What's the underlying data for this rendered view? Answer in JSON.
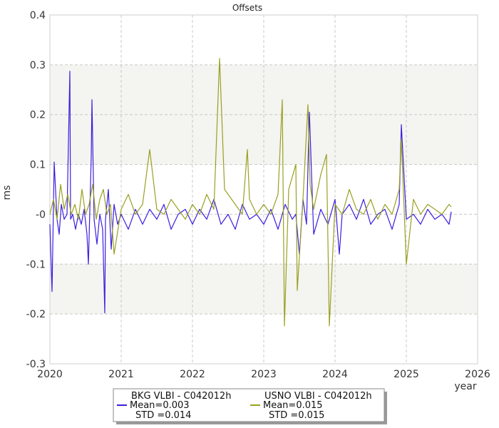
{
  "chart_data": {
    "type": "line",
    "title": "Offsets",
    "xlabel": "year",
    "ylabel": "ms",
    "xlim": [
      2020,
      2026
    ],
    "ylim": [
      -0.3,
      0.4
    ],
    "x_ticks": [
      "2020",
      "2021",
      "2022",
      "2023",
      "2024",
      "2025",
      "2026"
    ],
    "y_ticks": [
      "0.4",
      "0.3",
      "0.2",
      "0.1",
      "-0",
      "-0.1",
      "-0.2",
      "-0.3"
    ],
    "grid": true,
    "shaded_bands": [
      [
        0.1,
        0.3
      ],
      [
        -0.2,
        -0.1
      ]
    ],
    "legend_position": "bottom",
    "series": [
      {
        "name": "BKG VLBI - C042012h",
        "color": "#3b1fe0",
        "mean_label": "Mean=0.003",
        "std_label": "STD =0.014",
        "x": [
          2020.0,
          2020.03,
          2020.06,
          2020.1,
          2020.13,
          2020.16,
          2020.2,
          2020.24,
          2020.28,
          2020.29,
          2020.32,
          2020.36,
          2020.4,
          2020.44,
          2020.48,
          2020.52,
          2020.54,
          2020.58,
          2020.59,
          2020.62,
          2020.66,
          2020.7,
          2020.74,
          2020.77,
          2020.78,
          2020.82,
          2020.86,
          2020.9,
          2020.95,
          2021.0,
          2021.1,
          2021.2,
          2021.3,
          2021.4,
          2021.5,
          2021.6,
          2021.7,
          2021.8,
          2021.9,
          2022.0,
          2022.1,
          2022.2,
          2022.3,
          2022.4,
          2022.5,
          2022.6,
          2022.7,
          2022.8,
          2022.9,
          2023.0,
          2023.1,
          2023.2,
          2023.3,
          2023.4,
          2023.45,
          2023.5,
          2023.55,
          2023.6,
          2023.64,
          2023.7,
          2023.8,
          2023.9,
          2024.0,
          2024.06,
          2024.1,
          2024.2,
          2024.3,
          2024.4,
          2024.5,
          2024.6,
          2024.7,
          2024.8,
          2024.9,
          2024.93,
          2025.0,
          2025.1,
          2025.2,
          2025.3,
          2025.4,
          2025.5,
          2025.6,
          2025.63
        ],
        "y": [
          -0.02,
          -0.155,
          0.105,
          -0.01,
          -0.04,
          0.02,
          -0.01,
          0.0,
          0.287,
          -0.01,
          0.0,
          -0.03,
          0.0,
          -0.02,
          0.01,
          -0.04,
          -0.1,
          0.115,
          0.23,
          -0.01,
          -0.06,
          0.0,
          -0.03,
          -0.198,
          -0.01,
          0.05,
          -0.07,
          0.02,
          -0.02,
          0.0,
          -0.03,
          0.01,
          -0.02,
          0.01,
          -0.01,
          0.02,
          -0.03,
          0.0,
          0.01,
          -0.02,
          0.01,
          -0.01,
          0.03,
          -0.02,
          0.0,
          -0.03,
          0.02,
          -0.01,
          0.0,
          -0.02,
          0.01,
          -0.03,
          0.02,
          -0.01,
          0.0,
          -0.08,
          0.03,
          -0.02,
          0.205,
          -0.04,
          0.01,
          -0.02,
          0.03,
          -0.08,
          0.0,
          0.02,
          -0.01,
          0.03,
          -0.02,
          0.0,
          0.01,
          -0.03,
          0.02,
          0.18,
          -0.01,
          0.0,
          -0.02,
          0.01,
          -0.01,
          0.0,
          -0.02,
          0.005
        ]
      },
      {
        "name": "USNO VLBI - C042012h",
        "color": "#9aa020",
        "mean_label": "Mean=0.015",
        "std_label": "STD =0.015",
        "x": [
          2020.0,
          2020.05,
          2020.1,
          2020.15,
          2020.2,
          2020.25,
          2020.3,
          2020.35,
          2020.4,
          2020.45,
          2020.5,
          2020.55,
          2020.6,
          2020.65,
          2020.7,
          2020.75,
          2020.8,
          2020.85,
          2020.9,
          2021.0,
          2021.1,
          2021.2,
          2021.3,
          2021.4,
          2021.5,
          2021.6,
          2021.7,
          2021.8,
          2021.9,
          2022.0,
          2022.1,
          2022.2,
          2022.3,
          2022.38,
          2022.45,
          2022.6,
          2022.7,
          2022.77,
          2022.8,
          2022.9,
          2023.0,
          2023.1,
          2023.2,
          2023.26,
          2023.29,
          2023.35,
          2023.45,
          2023.47,
          2023.55,
          2023.62,
          2023.65,
          2023.7,
          2023.8,
          2023.88,
          2023.92,
          2024.0,
          2024.1,
          2024.2,
          2024.3,
          2024.4,
          2024.5,
          2024.6,
          2024.7,
          2024.8,
          2024.9,
          2024.93,
          2025.0,
          2025.1,
          2025.2,
          2025.3,
          2025.4,
          2025.5,
          2025.6,
          2025.63
        ],
        "y": [
          0.0,
          0.03,
          -0.01,
          0.06,
          0.01,
          0.04,
          0.0,
          0.02,
          -0.01,
          0.05,
          0.0,
          0.02,
          0.06,
          -0.01,
          0.03,
          0.05,
          0.0,
          0.02,
          -0.08,
          0.01,
          0.04,
          0.0,
          0.02,
          0.13,
          0.01,
          0.0,
          0.03,
          0.01,
          -0.01,
          0.02,
          0.0,
          0.04,
          0.01,
          0.313,
          0.05,
          0.02,
          0.0,
          0.13,
          0.03,
          0.0,
          0.02,
          0.0,
          0.04,
          0.23,
          -0.224,
          0.05,
          0.1,
          -0.153,
          0.03,
          0.22,
          0.06,
          0.01,
          0.08,
          0.12,
          -0.224,
          0.02,
          0.0,
          0.05,
          0.01,
          0.0,
          0.03,
          -0.01,
          0.02,
          0.0,
          0.05,
          0.15,
          -0.1,
          0.03,
          0.0,
          0.02,
          0.01,
          0.0,
          0.02,
          0.015
        ]
      }
    ]
  }
}
